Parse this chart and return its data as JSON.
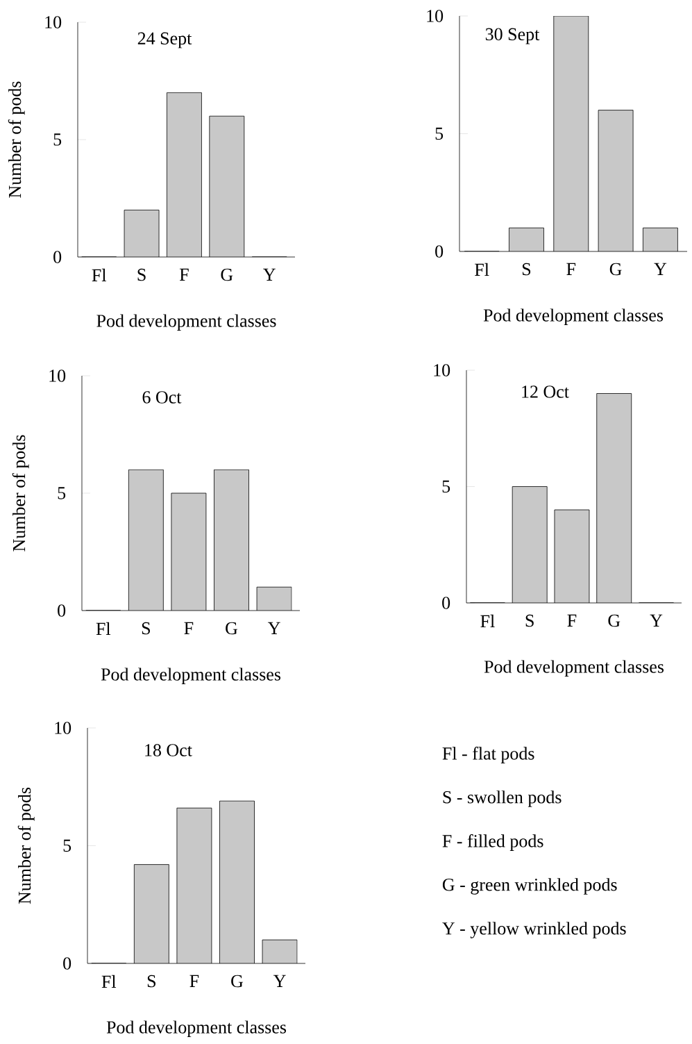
{
  "chart_data": [
    {
      "type": "bar",
      "title": "24 Sept",
      "xlabel": "Pod development classes",
      "ylabel": "Number of pods",
      "categories": [
        "Fl",
        "S",
        "F",
        "G",
        "Y"
      ],
      "values": [
        0,
        2,
        7,
        6,
        0
      ],
      "color": "#c8c8c8",
      "ylim": [
        0,
        10
      ],
      "yticks": [
        0,
        5,
        10
      ]
    },
    {
      "type": "bar",
      "title": "30 Sept",
      "xlabel": "Pod development classes",
      "categories": [
        "Fl",
        "S",
        "F",
        "G",
        "Y"
      ],
      "values": [
        0,
        1,
        10,
        6,
        1
      ],
      "color": "#c8c8c8",
      "ylim": [
        0,
        10
      ],
      "yticks": [
        0,
        5,
        10
      ]
    },
    {
      "type": "bar",
      "title": "6 Oct",
      "xlabel": "Pod development classes",
      "ylabel": "Number of pods",
      "categories": [
        "Fl",
        "S",
        "F",
        "G",
        "Y"
      ],
      "values": [
        0,
        6,
        5,
        6,
        1
      ],
      "color": "#c8c8c8",
      "ylim": [
        0,
        10
      ],
      "yticks": [
        0,
        5,
        10
      ]
    },
    {
      "type": "bar",
      "title": "12 Oct",
      "xlabel": "Pod development classes",
      "categories": [
        "Fl",
        "S",
        "F",
        "G",
        "Y"
      ],
      "values": [
        0,
        5,
        4,
        9,
        0
      ],
      "color": "#c8c8c8",
      "ylim": [
        0,
        10
      ],
      "yticks": [
        0,
        5,
        10
      ]
    },
    {
      "type": "bar",
      "title": "18 Oct",
      "xlabel": "Pod development classes",
      "ylabel": "Number of pods",
      "categories": [
        "Fl",
        "S",
        "F",
        "G",
        "Y"
      ],
      "values": [
        0,
        4.2,
        6.6,
        6.9,
        1
      ],
      "color": "#c8c8c8",
      "ylim": [
        0,
        10
      ],
      "yticks": [
        0,
        5,
        10
      ]
    },
    {
      "type": "other",
      "annotations": [
        "Fl - flat pods",
        "S - swollen pods",
        "F - filled pods",
        "G - green wrinkled pods",
        "Y - yellow wrinkled pods"
      ]
    }
  ]
}
